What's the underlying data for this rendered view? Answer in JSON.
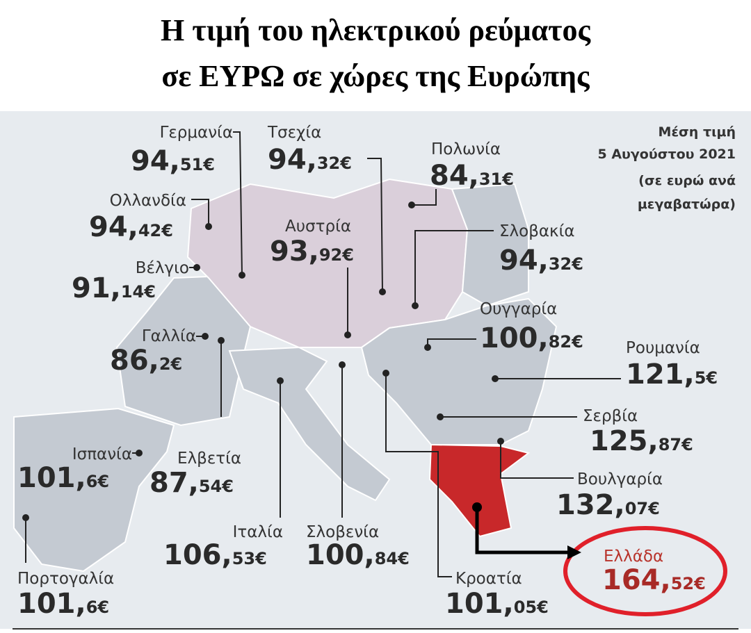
{
  "header": {
    "title_lines": [
      "Η τιμή του ηλεκτρικού ρεύματος",
      "σε ΕΥΡΩ σε χώρες της Ευρώπης"
    ]
  },
  "note": {
    "lines": [
      "Μέση τιμή",
      "5 Αυγούστου 2021",
      "(σε ευρώ ανά",
      "μεγαβατώρα)"
    ]
  },
  "countries": [
    {
      "name": "Γερμανία",
      "price_main": "94,",
      "price_small": "51€"
    },
    {
      "name": "Τσεχία",
      "price_main": "94,",
      "price_small": "32€"
    },
    {
      "name": "Πολωνία",
      "price_main": "84,",
      "price_small": "31€"
    },
    {
      "name": "Ολλανδία",
      "price_main": "94,",
      "price_small": "42€"
    },
    {
      "name": "Αυστρία",
      "price_main": "93,",
      "price_small": "92€"
    },
    {
      "name": "Σλοβακία",
      "price_main": "94,",
      "price_small": "32€"
    },
    {
      "name": "Βέλγιο",
      "price_main": "91,",
      "price_small": "14€"
    },
    {
      "name": "Γαλλία",
      "price_main": "86,",
      "price_small": "2€"
    },
    {
      "name": "Ουγγαρία",
      "price_main": "100,",
      "price_small": "82€"
    },
    {
      "name": "Ρουμανία",
      "price_main": "121,",
      "price_small": "5€"
    },
    {
      "name": "Σερβία",
      "price_main": "125,",
      "price_small": "87€"
    },
    {
      "name": "Ισπανία",
      "price_main": "101,",
      "price_small": "6€"
    },
    {
      "name": "Ελβετία",
      "price_main": "87,",
      "price_small": "54€"
    },
    {
      "name": "Ιταλία",
      "price_main": "106,",
      "price_small": "53€"
    },
    {
      "name": "Σλοβενία",
      "price_main": "100,",
      "price_small": "84€"
    },
    {
      "name": "Βουλγαρία",
      "price_main": "132,",
      "price_small": "07€"
    },
    {
      "name": "Πορτογαλία",
      "price_main": "101,",
      "price_small": "6€"
    },
    {
      "name": "Κροατία",
      "price_main": "101,",
      "price_small": "05€"
    },
    {
      "name": "Ελλάδα",
      "price_main": "164,",
      "price_small": "52€"
    }
  ]
}
